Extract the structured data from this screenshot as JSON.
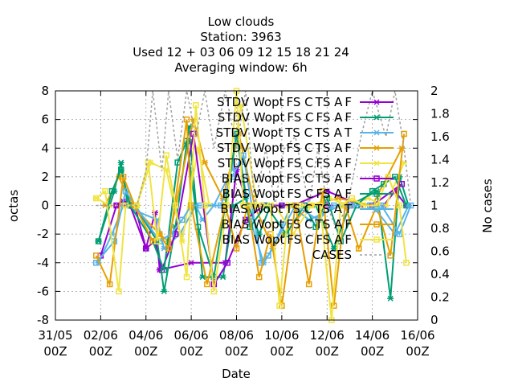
{
  "title_lines": [
    "Low clouds",
    "Station:      3963",
    "Used  12 + 03 06 09 12 15 18 21 24",
    "Averaging window:  6h"
  ],
  "chart_data": {
    "type": "line",
    "title": "Low clouds",
    "xlabel": "Date",
    "ylabel": "octas",
    "y2label": "No cases",
    "xlim": [
      "2023-05-31T00:00",
      "2023-06-16T00:00"
    ],
    "ylim": [
      -8,
      8
    ],
    "y2lim": [
      0,
      2
    ],
    "grid": true,
    "legend_position": "top-right, inside plot",
    "x_tick_labels": [
      [
        "31/05",
        "00Z"
      ],
      [
        "02/06",
        "00Z"
      ],
      [
        "04/06",
        "00Z"
      ],
      [
        "06/06",
        "00Z"
      ],
      [
        "08/06",
        "00Z"
      ],
      [
        "10/06",
        "00Z"
      ],
      [
        "12/06",
        "00Z"
      ],
      [
        "14/06",
        "00Z"
      ],
      [
        "16/06",
        "00Z"
      ]
    ],
    "y_tick_labels": [
      "-8",
      "-6",
      "-4",
      "-2",
      "0",
      "2",
      "4",
      "6",
      "8"
    ],
    "y2_tick_labels": [
      "0",
      "0.2",
      "0.4",
      "0.6",
      "0.8",
      "1",
      "1.2",
      "1.4",
      "1.6",
      "1.8",
      "2"
    ],
    "x_day_values": [
      0,
      2,
      4,
      6,
      8,
      10,
      12,
      14,
      16
    ],
    "y_tick_values": [
      -8,
      -6,
      -4,
      -2,
      0,
      2,
      4,
      6,
      8
    ],
    "y2_tick_values": [
      0,
      0.2,
      0.4,
      0.6,
      0.8,
      1,
      1.2,
      1.4,
      1.6,
      1.8,
      2
    ],
    "series": [
      {
        "name": "STDV Wopt_FS C_TS A_F",
        "color": "#9400d3",
        "marker": "x",
        "axis": "y",
        "x": [
          2.7,
          3.0,
          3.5,
          4.0,
          4.4,
          4.6,
          6.0,
          7.5,
          8.0,
          8.5,
          9.5,
          10.5,
          12.0,
          13.5,
          14.5,
          15.0,
          15.5
        ],
        "y": [
          0.0,
          0.3,
          0.0,
          -3.0,
          -0.5,
          -4.5,
          -4.0,
          -4.0,
          2.5,
          0.0,
          0.0,
          0.0,
          1.0,
          0.0,
          0.0,
          1.0,
          0.0
        ]
      },
      {
        "name": "STDV Wopt_FS C_FS A_F",
        "color": "#009e73",
        "marker": "x",
        "axis": "y",
        "x": [
          1.9,
          2.6,
          2.9,
          3.2,
          3.5,
          4.5,
          4.8,
          5.3,
          5.9,
          6.5,
          7.4,
          7.9,
          8.4,
          9.0,
          9.5,
          10.0,
          11.5,
          12.3,
          13.0,
          14.2,
          14.8,
          15.2,
          15.6
        ],
        "y": [
          -2.5,
          1.0,
          3.0,
          0.0,
          0.0,
          -2.5,
          -6.0,
          -1.5,
          5.5,
          -5.0,
          -5.0,
          0.0,
          0.5,
          -2.0,
          0.0,
          0.0,
          0.0,
          -3.0,
          0.0,
          1.0,
          -6.5,
          2.0,
          0.0
        ]
      },
      {
        "name": "STDV Wopt_TS C_TS A_T",
        "color": "#56b4e9",
        "marker": "x",
        "axis": "y",
        "x": [
          1.9,
          2.5,
          3.0,
          4.5,
          4.8,
          5.5,
          6.2,
          6.5,
          7.0,
          7.8,
          8.0,
          8.2,
          8.6,
          9.2,
          9.6,
          10.4,
          11.2,
          12.6,
          14.0,
          15.0,
          15.6
        ],
        "y": [
          -4.0,
          -2.0,
          0.0,
          -1.0,
          -3.0,
          -2.0,
          0.0,
          -1.0,
          0.0,
          2.5,
          5.0,
          3.0,
          -1.0,
          -4.0,
          -3.0,
          0.0,
          -1.0,
          0.0,
          0.0,
          -2.0,
          0.0
        ]
      },
      {
        "name": "STDV Wopt_FS C_TS A_F",
        "color": "#e69f00",
        "marker": "x",
        "axis": "y",
        "x": [
          2.2,
          2.8,
          3.4,
          4.6,
          5.0,
          6.1,
          6.6,
          7.4,
          8.1,
          8.8,
          9.6,
          10.1,
          11.2,
          12.5,
          14.0,
          15.3
        ],
        "y": [
          0.0,
          2.0,
          0.0,
          -2.0,
          -2.5,
          6.0,
          3.0,
          0.5,
          5.0,
          0.0,
          -3.0,
          -2.0,
          0.0,
          0.5,
          0.0,
          4.0
        ]
      },
      {
        "name": "STDV Wopt_FS C_FS A_F",
        "color": "#f0e442",
        "marker": "x",
        "axis": "y",
        "x": [
          1.8,
          2.4,
          3.0,
          3.6,
          4.2,
          4.9,
          5.6,
          6.3,
          6.8,
          7.5,
          8.2,
          8.9,
          9.7,
          10.5,
          11.3,
          12.1,
          13.0,
          13.8,
          14.6,
          15.4
        ],
        "y": [
          0.5,
          0.0,
          0.0,
          0.0,
          3.0,
          2.5,
          -2.5,
          4.0,
          0.0,
          0.0,
          7.0,
          0.0,
          0.0,
          -2.0,
          0.0,
          0.5,
          0.0,
          0.5,
          0.0,
          3.0
        ]
      },
      {
        "name": "BIAS Wopt_FS C_TS A_F",
        "color": "#9400d3",
        "marker": "square",
        "axis": "y",
        "x": [
          2.0,
          2.7,
          3.3,
          4.0,
          4.4,
          4.7,
          5.3,
          6.1,
          7.0,
          7.6,
          8.4,
          9.2,
          10.0,
          11.0,
          12.0,
          13.0,
          14.0,
          15.3
        ],
        "y": [
          -3.5,
          0.0,
          0.0,
          -3.0,
          -2.5,
          -4.5,
          -2.0,
          5.0,
          -5.5,
          -4.0,
          -1.0,
          0.0,
          0.0,
          0.0,
          0.0,
          0.0,
          0.0,
          1.5
        ]
      },
      {
        "name": "BIAS Wopt_FS C_FS A_F",
        "color": "#009e73",
        "marker": "square",
        "axis": "y",
        "x": [
          1.9,
          2.5,
          2.9,
          3.3,
          4.3,
          4.8,
          5.4,
          5.8,
          6.3,
          7.0,
          8.0,
          8.6,
          9.3,
          10.2,
          11.0,
          11.5,
          12.0,
          12.6,
          13.3,
          14.0,
          14.5,
          15.0,
          15.5
        ],
        "y": [
          -2.5,
          1.0,
          2.5,
          0.0,
          -2.5,
          -4.5,
          3.0,
          4.5,
          -1.5,
          -5.0,
          5.0,
          -1.5,
          0.0,
          -2.0,
          0.0,
          -1.5,
          0.5,
          -2.5,
          0.0,
          1.0,
          1.5,
          2.0,
          0.0
        ]
      },
      {
        "name": "BIAS Wopt_TS C_TS A_T",
        "color": "#56b4e9",
        "marker": "square",
        "axis": "y",
        "x": [
          1.8,
          2.6,
          3.1,
          4.6,
          5.1,
          5.6,
          6.0,
          6.4,
          7.3,
          7.8,
          8.3,
          9.1,
          9.4,
          10.6,
          11.6,
          12.3,
          13.1,
          13.9,
          14.4,
          15.2,
          15.7
        ],
        "y": [
          -4.0,
          -2.5,
          1.0,
          -2.5,
          -2.0,
          -1.0,
          0.0,
          0.0,
          0.0,
          2.0,
          3.5,
          -4.0,
          -3.5,
          0.0,
          -1.0,
          0.0,
          0.0,
          0.0,
          0.0,
          -2.0,
          0.0
        ]
      },
      {
        "name": "BIAS Wopt_FS C_TS A_F",
        "color": "#e69f00",
        "marker": "square",
        "axis": "y",
        "x": [
          1.8,
          2.4,
          3.0,
          3.5,
          4.3,
          4.6,
          5.0,
          5.8,
          6.0,
          6.7,
          7.5,
          8.0,
          8.5,
          9.0,
          9.5,
          10.0,
          10.6,
          11.2,
          11.8,
          12.3,
          12.8,
          13.4,
          14.2,
          14.8,
          15.4
        ],
        "y": [
          -3.5,
          -5.5,
          2.0,
          0.0,
          -2.5,
          -2.0,
          -3.0,
          6.0,
          0.0,
          -5.5,
          0.0,
          -3.0,
          0.0,
          -5.0,
          -2.0,
          -7.0,
          0.0,
          -5.5,
          1.0,
          -7.0,
          0.0,
          -3.0,
          0.0,
          -3.5,
          5.0
        ]
      },
      {
        "name": "BIAS Wopt_FS C_FS A_F",
        "color": "#f0e442",
        "marker": "square",
        "axis": "y",
        "x": [
          1.8,
          2.2,
          2.8,
          3.1,
          3.6,
          4.1,
          4.5,
          4.9,
          5.3,
          5.8,
          6.2,
          6.6,
          7.0,
          7.6,
          8.0,
          8.3,
          8.7,
          9.1,
          9.5,
          9.9,
          10.3,
          10.8,
          11.3,
          11.7,
          12.2,
          12.6,
          13.1,
          13.6,
          14.2,
          14.7,
          15.2,
          15.5
        ],
        "y": [
          0.5,
          1.0,
          -6.0,
          0.0,
          0.0,
          3.0,
          -2.5,
          3.5,
          0.0,
          -5.0,
          7.0,
          0.0,
          -6.0,
          0.0,
          8.0,
          0.0,
          0.0,
          0.0,
          0.0,
          -7.0,
          0.0,
          0.0,
          0.0,
          0.0,
          -8.0,
          0.0,
          0.5,
          0.0,
          0.0,
          2.0,
          0.0,
          -4.0
        ]
      },
      {
        "name": "CASES",
        "color": "#a0a0a0",
        "dashed": true,
        "axis": "y2",
        "x": [
          1.8,
          3.2,
          3.6,
          4.0,
          4.3,
          4.7,
          5.0,
          5.4,
          5.8,
          6.2,
          6.6,
          7.0,
          7.5,
          8.0,
          8.4,
          8.8,
          9.3,
          9.7,
          10.1,
          10.6,
          11.2,
          11.6,
          12.0,
          12.4,
          12.9,
          13.5,
          14.0,
          14.6,
          15.0,
          15.4,
          15.7
        ],
        "y": [
          1,
          1,
          1,
          1.3,
          2.0,
          1.3,
          2.0,
          1.4,
          2.0,
          1.6,
          2.0,
          1.5,
          2.0,
          1.5,
          2.0,
          1.0,
          1.5,
          1.0,
          1.5,
          1.6,
          1.0,
          1.5,
          1.0,
          0.8,
          1.0,
          1.6,
          2.0,
          1.6,
          2.0,
          1.5,
          1.0
        ]
      }
    ],
    "legend_labels": [
      "STDV Wopt FS C TS A F",
      "STDV Wopt FS C FS A F",
      "STDV Wopt TS C TS A T",
      "STDV Wopt FS C TS A F",
      "STDV Wopt FS C FS A F",
      "BIAS Wopt FS C TS A F",
      "BIAS Wopt FS C FS A F",
      "BIAS Wopt TS C TS A T",
      "BIAS Wopt FS C TS A F",
      "BIAS Wopt FS C FS A F",
      "CASES"
    ]
  }
}
